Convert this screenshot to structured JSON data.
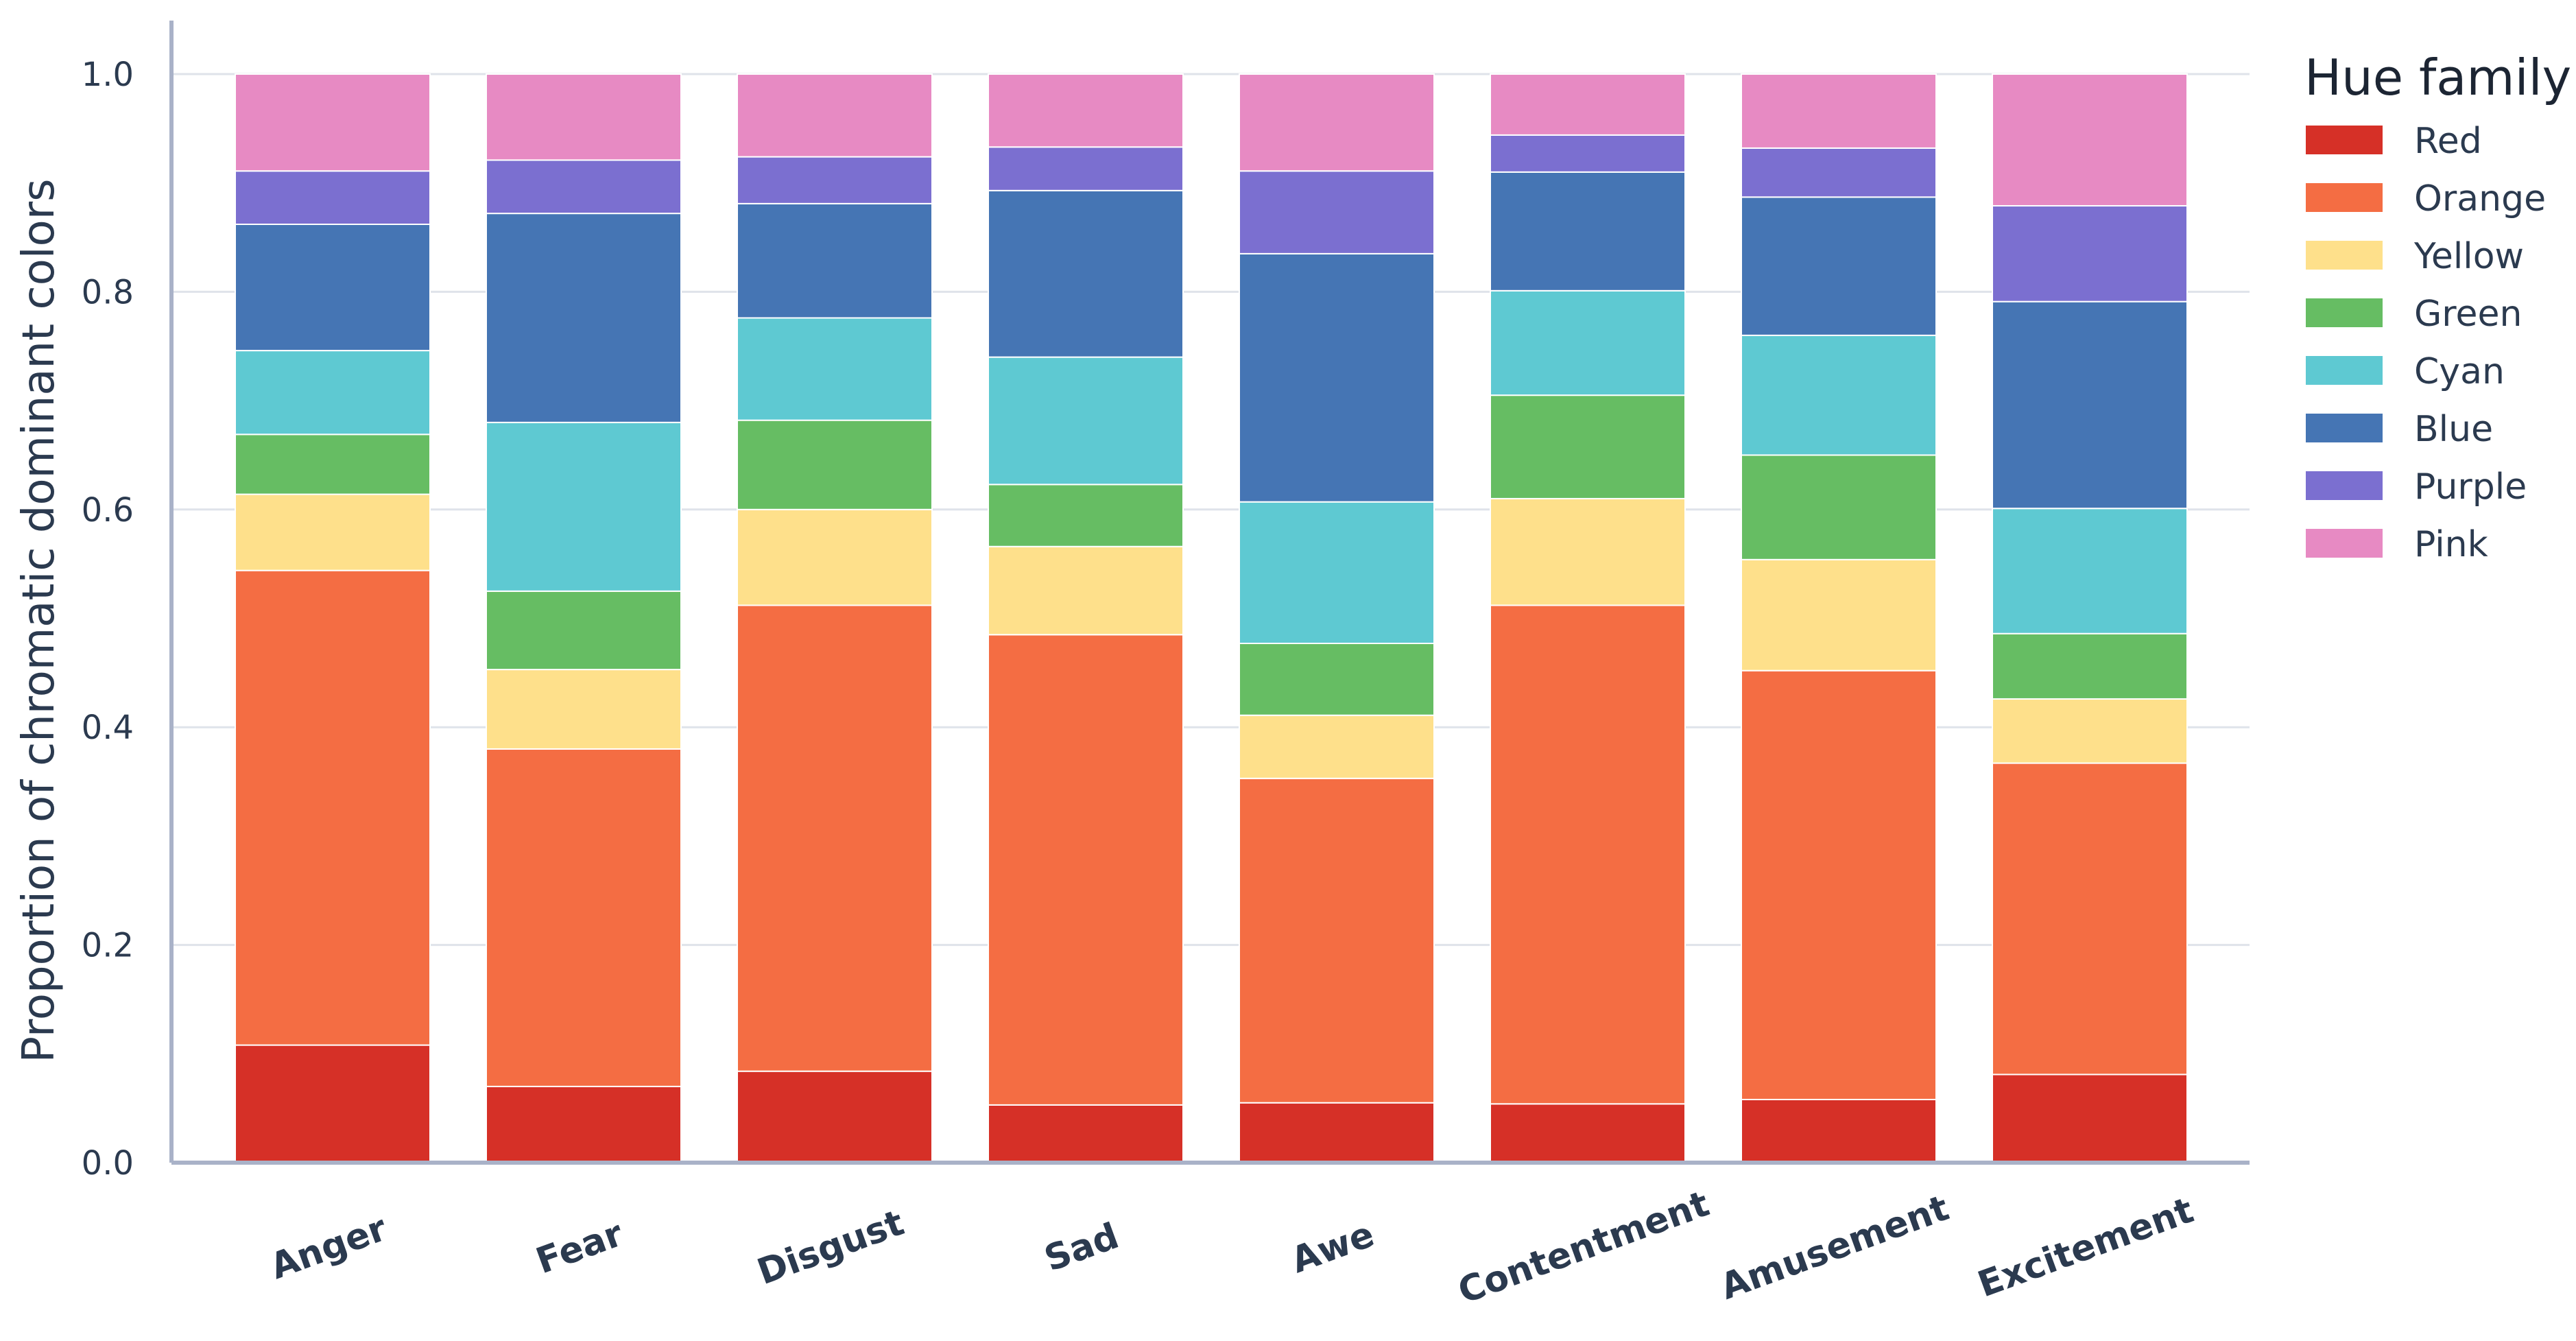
{
  "chart_data": {
    "type": "bar",
    "stacked": true,
    "categories": [
      "Anger",
      "Fear",
      "Disgust",
      "Sad",
      "Awe",
      "Contentment",
      "Amusement",
      "Excitement"
    ],
    "series": [
      {
        "name": "Red",
        "color": "#d63027",
        "values": [
          0.108,
          0.07,
          0.084,
          0.053,
          0.055,
          0.054,
          0.058,
          0.081
        ]
      },
      {
        "name": "Orange",
        "color": "#f46d43",
        "values": [
          0.436,
          0.31,
          0.428,
          0.432,
          0.298,
          0.458,
          0.394,
          0.286
        ]
      },
      {
        "name": "Yellow",
        "color": "#fee08b",
        "values": [
          0.07,
          0.073,
          0.088,
          0.081,
          0.058,
          0.098,
          0.102,
          0.059
        ]
      },
      {
        "name": "Green",
        "color": "#66bd63",
        "values": [
          0.055,
          0.072,
          0.082,
          0.057,
          0.066,
          0.095,
          0.096,
          0.06
        ]
      },
      {
        "name": "Cyan",
        "color": "#5ec9d2",
        "values": [
          0.077,
          0.155,
          0.094,
          0.117,
          0.13,
          0.096,
          0.11,
          0.115
        ]
      },
      {
        "name": "Blue",
        "color": "#4575b4",
        "values": [
          0.116,
          0.192,
          0.105,
          0.153,
          0.228,
          0.109,
          0.127,
          0.19
        ]
      },
      {
        "name": "Purple",
        "color": "#7b6fd0",
        "values": [
          0.049,
          0.049,
          0.043,
          0.04,
          0.076,
          0.034,
          0.045,
          0.088
        ]
      },
      {
        "name": "Pink",
        "color": "#e78ac3",
        "values": [
          0.089,
          0.079,
          0.076,
          0.067,
          0.089,
          0.056,
          0.068,
          0.121
        ]
      }
    ],
    "xlabel": "",
    "ylabel": "Proportion of chromatic dominant colors",
    "ylim": [
      0,
      1.05
    ],
    "yticks": [
      "0.0",
      "0.2",
      "0.4",
      "0.6",
      "0.8",
      "1.0"
    ],
    "grid": true,
    "legend": {
      "title": "Hue family",
      "placement": "top-right outside"
    }
  }
}
